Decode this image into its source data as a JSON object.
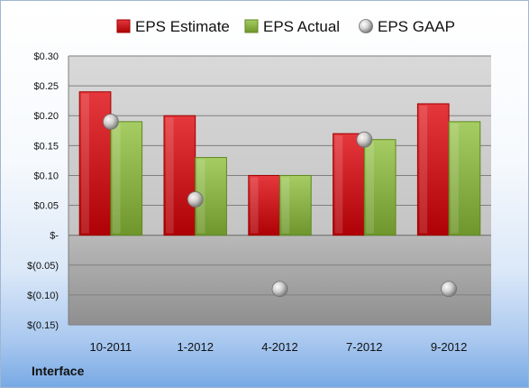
{
  "chart_data": {
    "type": "bar",
    "categories": [
      "10-2011",
      "1-2012",
      "4-2012",
      "7-2012",
      "9-2012"
    ],
    "series": [
      {
        "name": "EPS Estimate",
        "type": "bar",
        "color": "#cc1f24",
        "values": [
          0.24,
          0.2,
          0.1,
          0.17,
          0.22
        ]
      },
      {
        "name": "EPS Actual",
        "type": "bar",
        "color": "#8db44b",
        "values": [
          0.19,
          0.13,
          0.1,
          0.16,
          0.19
        ]
      },
      {
        "name": "EPS GAAP",
        "type": "scatter",
        "color": "#b8b8b8",
        "values": [
          0.19,
          0.06,
          -0.09,
          0.16,
          -0.09
        ]
      }
    ],
    "ylim": [
      -0.15,
      0.3
    ],
    "y_ticks": [
      {
        "value": 0.3,
        "label": "$0.30"
      },
      {
        "value": 0.25,
        "label": "$0.25"
      },
      {
        "value": 0.2,
        "label": "$0.20"
      },
      {
        "value": 0.15,
        "label": "$0.15"
      },
      {
        "value": 0.1,
        "label": "$0.10"
      },
      {
        "value": 0.05,
        "label": "$0.05"
      },
      {
        "value": 0.0,
        "label": "$-"
      },
      {
        "value": -0.05,
        "label": "$(0.05)"
      },
      {
        "value": -0.1,
        "label": "$(0.10)"
      },
      {
        "value": -0.15,
        "label": "$(0.15)"
      }
    ],
    "legend_position": "top",
    "grid": true
  },
  "footer": {
    "company": "Interface"
  }
}
